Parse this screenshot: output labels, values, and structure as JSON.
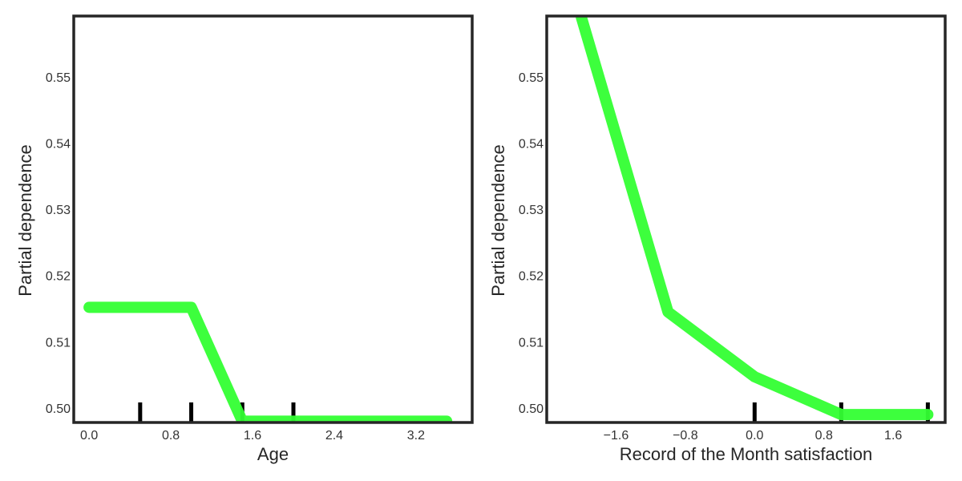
{
  "chart_data": [
    {
      "type": "line",
      "xlabel": "Age",
      "ylabel": "Partial dependence",
      "xlim": [
        -0.15,
        3.75
      ],
      "ylim": [
        0.4978,
        0.5592
      ],
      "xticks": [
        0.0,
        0.8,
        1.6,
        2.4,
        3.2
      ],
      "xtick_labels": [
        "0.0",
        "0.8",
        "1.6",
        "2.4",
        "3.2"
      ],
      "yticks": [
        0.5,
        0.51,
        0.52,
        0.53,
        0.54,
        0.55
      ],
      "ytick_labels": [
        "0.50",
        "0.51",
        "0.52",
        "0.53",
        "0.54",
        "0.55"
      ],
      "deciles": [
        0.5,
        1.0,
        1.5,
        2.0
      ],
      "series": [
        {
          "x": [
            0.0,
            1.0,
            1.5,
            3.5
          ],
          "y": [
            0.5152,
            0.5152,
            0.498,
            0.498
          ],
          "color": "#33ff33"
        }
      ],
      "grid": false
    },
    {
      "type": "line",
      "xlabel": "Record of the Month satisfaction",
      "ylabel": "Partial dependence",
      "xlim": [
        -2.4,
        2.2
      ],
      "ylim": [
        0.4978,
        0.5592
      ],
      "xticks": [
        -1.6,
        -0.8,
        0.0,
        0.8,
        1.6
      ],
      "xtick_labels": [
        "−1.6",
        "−0.8",
        "0.0",
        "0.8",
        "1.6"
      ],
      "yticks": [
        0.5,
        0.51,
        0.52,
        0.53,
        0.54,
        0.55
      ],
      "ytick_labels": [
        "0.50",
        "0.51",
        "0.52",
        "0.53",
        "0.54",
        "0.55"
      ],
      "deciles": [
        0.0,
        1.0,
        2.0
      ],
      "series": [
        {
          "x": [
            -2.0,
            -1.0,
            0.0,
            1.0,
            2.0
          ],
          "y": [
            0.559,
            0.5145,
            0.5047,
            0.499,
            0.499
          ],
          "color": "#33ff33"
        }
      ],
      "grid": false
    }
  ]
}
